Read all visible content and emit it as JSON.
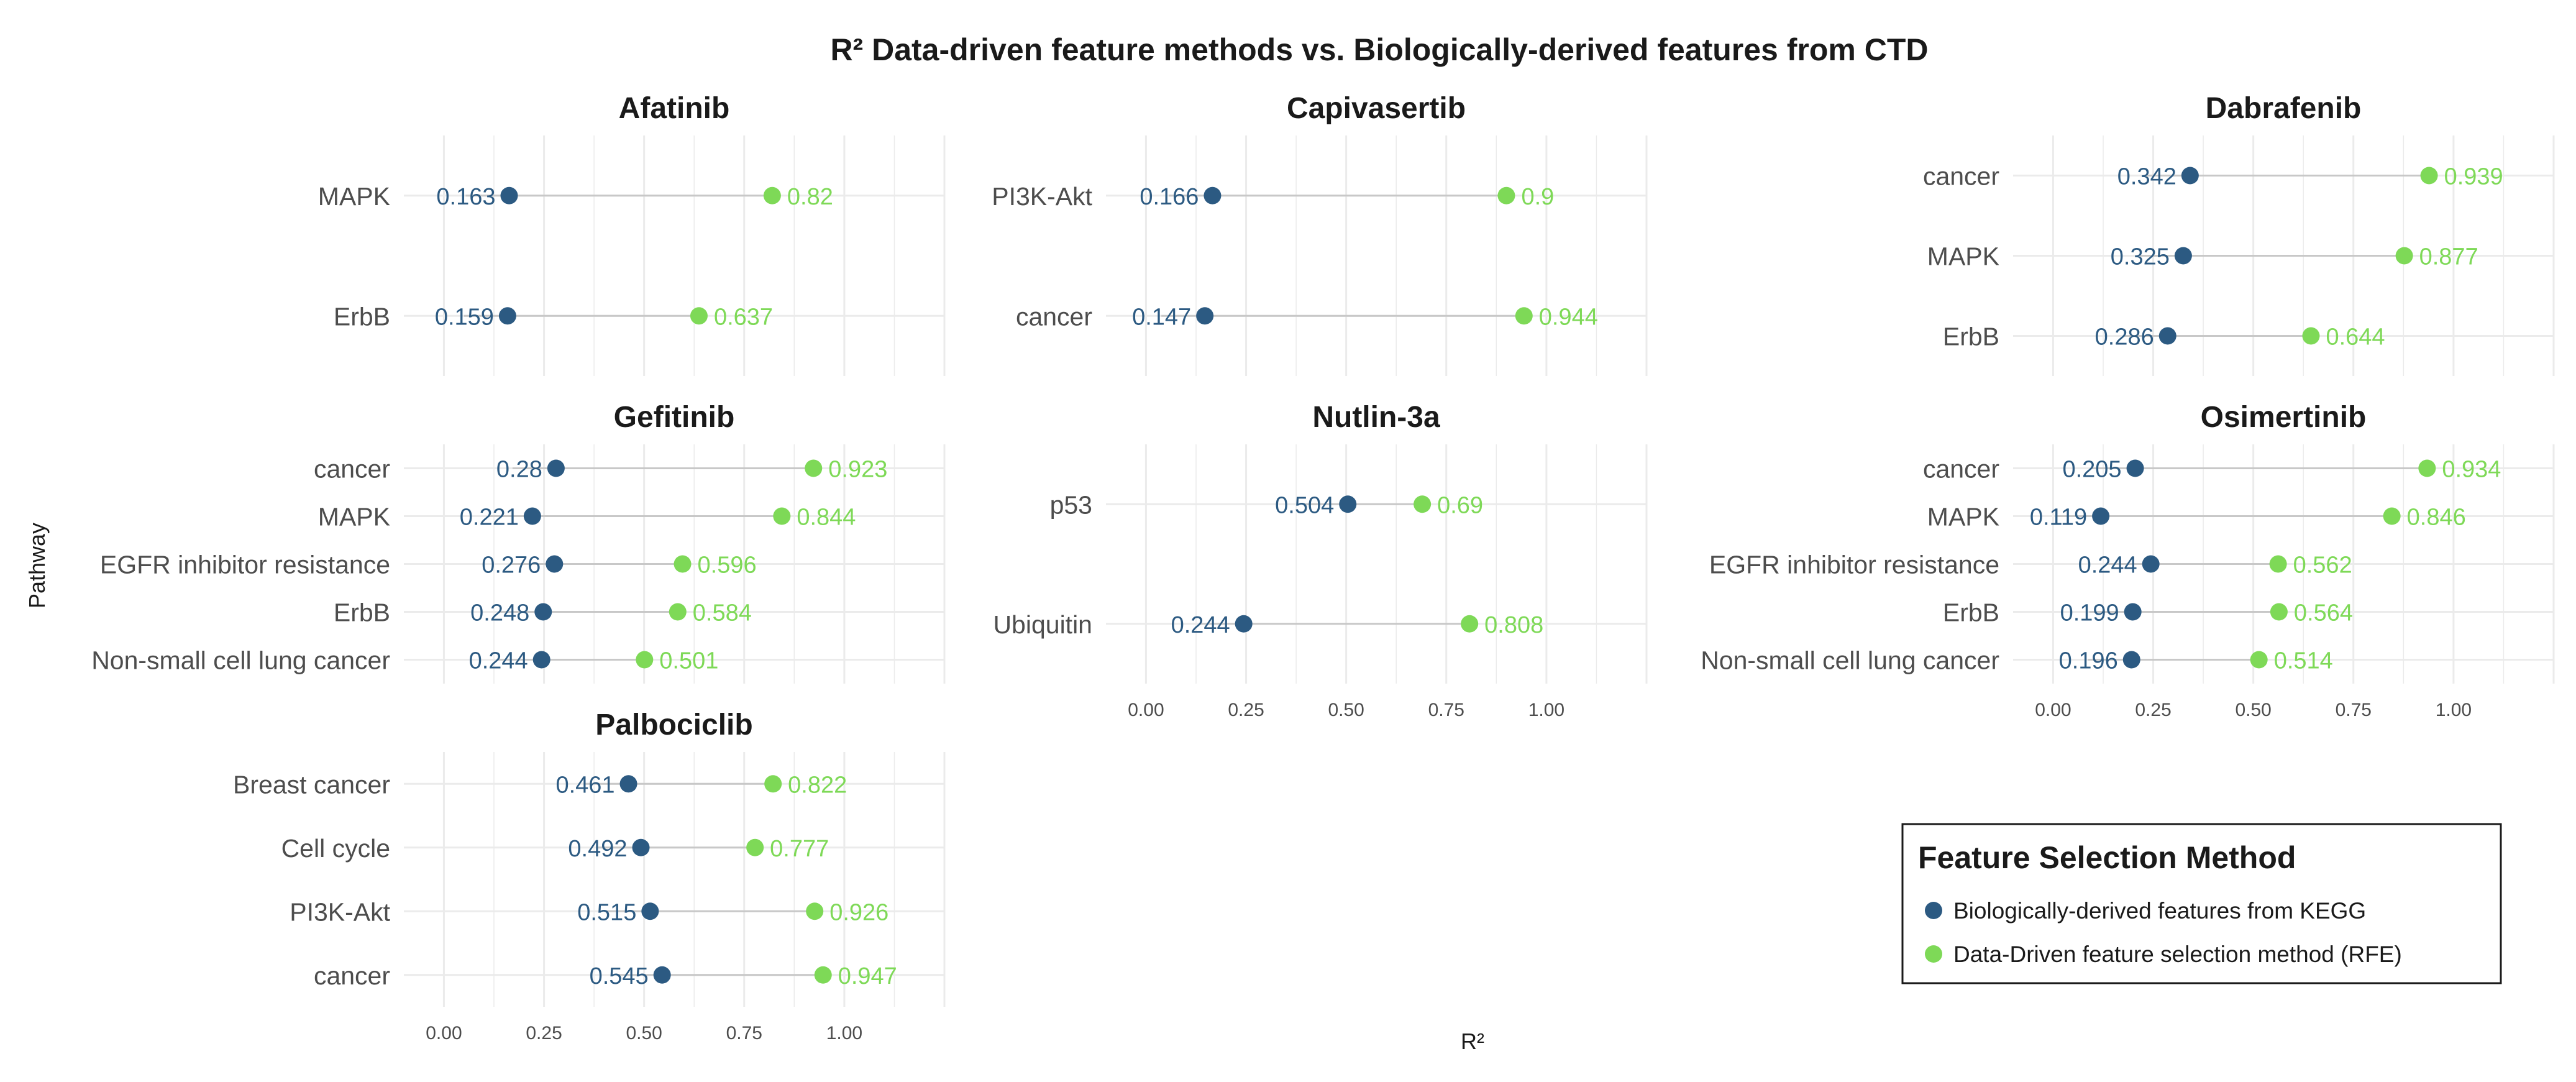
{
  "chart_data": {
    "type": "dumbbell",
    "title": "R² Data-driven feature methods vs. Biologically-derived features from CTD",
    "xlabel": "R²",
    "ylabel": "Pathway",
    "xlim": [
      -0.1,
      1.25
    ],
    "x_ticks": [
      "0.00",
      "0.25",
      "0.50",
      "0.75",
      "1.00"
    ],
    "grid": true,
    "colors": {
      "kegg": "#2c5a82",
      "rfe": "#7ed957",
      "segment": "#c8c8c8",
      "grid": "#ebebeb"
    },
    "legend": {
      "title": "Feature Selection Method",
      "placement": "bottom-right",
      "entries": [
        {
          "key": "kegg",
          "label": "Biologically-derived features from KEGG"
        },
        {
          "key": "rfe",
          "label": "Data-Driven feature selection method (RFE)"
        }
      ]
    },
    "panels": [
      {
        "drug": "Afatinib",
        "pathways": [
          {
            "name": "MAPK",
            "kegg": 0.163,
            "rfe": 0.82,
            "kegg_label": "0.163",
            "rfe_label": "0.82"
          },
          {
            "name": "ErbB",
            "kegg": 0.159,
            "rfe": 0.637,
            "kegg_label": "0.159",
            "rfe_label": "0.637"
          }
        ]
      },
      {
        "drug": "Capivasertib",
        "pathways": [
          {
            "name": "PI3K-Akt",
            "kegg": 0.166,
            "rfe": 0.9,
            "kegg_label": "0.166",
            "rfe_label": "0.9"
          },
          {
            "name": "cancer",
            "kegg": 0.147,
            "rfe": 0.944,
            "kegg_label": "0.147",
            "rfe_label": "0.944"
          }
        ]
      },
      {
        "drug": "Dabrafenib",
        "pathways": [
          {
            "name": "cancer",
            "kegg": 0.342,
            "rfe": 0.939,
            "kegg_label": "0.342",
            "rfe_label": "0.939"
          },
          {
            "name": "MAPK",
            "kegg": 0.325,
            "rfe": 0.877,
            "kegg_label": "0.325",
            "rfe_label": "0.877"
          },
          {
            "name": "ErbB",
            "kegg": 0.286,
            "rfe": 0.644,
            "kegg_label": "0.286",
            "rfe_label": "0.644"
          }
        ]
      },
      {
        "drug": "Gefitinib",
        "pathways": [
          {
            "name": "cancer",
            "kegg": 0.28,
            "rfe": 0.923,
            "kegg_label": "0.28",
            "rfe_label": "0.923"
          },
          {
            "name": "MAPK",
            "kegg": 0.221,
            "rfe": 0.844,
            "kegg_label": "0.221",
            "rfe_label": "0.844"
          },
          {
            "name": "EGFR inhibitor resistance",
            "kegg": 0.276,
            "rfe": 0.596,
            "kegg_label": "0.276",
            "rfe_label": "0.596"
          },
          {
            "name": "ErbB",
            "kegg": 0.248,
            "rfe": 0.584,
            "kegg_label": "0.248",
            "rfe_label": "0.584"
          },
          {
            "name": "Non-small cell lung cancer",
            "kegg": 0.244,
            "rfe": 0.501,
            "kegg_label": "0.244",
            "rfe_label": "0.501"
          }
        ]
      },
      {
        "drug": "Nutlin-3a",
        "pathways": [
          {
            "name": "p53",
            "kegg": 0.504,
            "rfe": 0.69,
            "kegg_label": "0.504",
            "rfe_label": "0.69"
          },
          {
            "name": "Ubiquitin",
            "kegg": 0.244,
            "rfe": 0.808,
            "kegg_label": "0.244",
            "rfe_label": "0.808"
          }
        ]
      },
      {
        "drug": "Osimertinib",
        "pathways": [
          {
            "name": "cancer",
            "kegg": 0.205,
            "rfe": 0.934,
            "kegg_label": "0.205",
            "rfe_label": "0.934"
          },
          {
            "name": "MAPK",
            "kegg": 0.119,
            "rfe": 0.846,
            "kegg_label": "0.119",
            "rfe_label": "0.846"
          },
          {
            "name": "EGFR inhibitor resistance",
            "kegg": 0.244,
            "rfe": 0.562,
            "kegg_label": "0.244",
            "rfe_label": "0.562"
          },
          {
            "name": "ErbB",
            "kegg": 0.199,
            "rfe": 0.564,
            "kegg_label": "0.199",
            "rfe_label": "0.564"
          },
          {
            "name": "Non-small cell lung cancer",
            "kegg": 0.196,
            "rfe": 0.514,
            "kegg_label": "0.196",
            "rfe_label": "0.514"
          }
        ]
      },
      {
        "drug": "Palbociclib",
        "pathways": [
          {
            "name": "Breast cancer",
            "kegg": 0.461,
            "rfe": 0.822,
            "kegg_label": "0.461",
            "rfe_label": "0.822"
          },
          {
            "name": "Cell cycle",
            "kegg": 0.492,
            "rfe": 0.777,
            "kegg_label": "0.492",
            "rfe_label": "0.777"
          },
          {
            "name": "PI3K-Akt",
            "kegg": 0.515,
            "rfe": 0.926,
            "kegg_label": "0.515",
            "rfe_label": "0.926"
          },
          {
            "name": "cancer",
            "kegg": 0.545,
            "rfe": 0.947,
            "kegg_label": "0.545",
            "rfe_label": "0.947"
          }
        ]
      }
    ]
  }
}
